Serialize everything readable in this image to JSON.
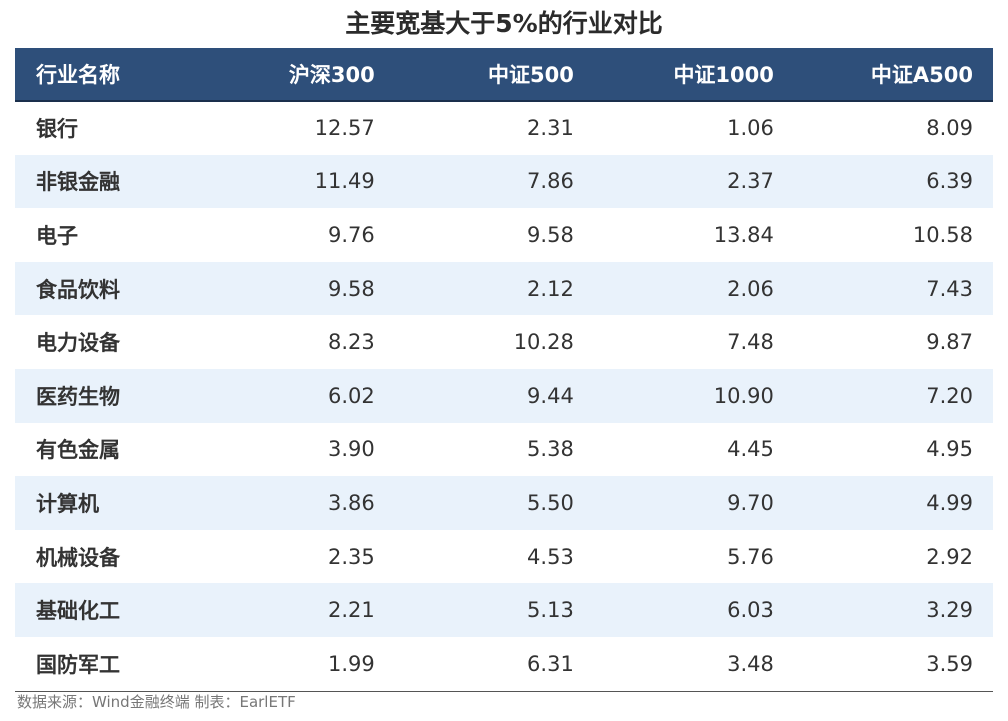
{
  "title": "主要宽基大于5%的行业对比",
  "table": {
    "headers": [
      "行业名称",
      "沪深300",
      "中证500",
      "中证1000",
      "中证A500"
    ],
    "rows": [
      [
        "银行",
        "12.57",
        "2.31",
        "1.06",
        "8.09"
      ],
      [
        "非银金融",
        "11.49",
        "7.86",
        "2.37",
        "6.39"
      ],
      [
        "电子",
        "9.76",
        "9.58",
        "13.84",
        "10.58"
      ],
      [
        "食品饮料",
        "9.58",
        "2.12",
        "2.06",
        "7.43"
      ],
      [
        "电力设备",
        "8.23",
        "10.28",
        "7.48",
        "9.87"
      ],
      [
        "医药生物",
        "6.02",
        "9.44",
        "10.90",
        "7.20"
      ],
      [
        "有色金属",
        "3.90",
        "5.38",
        "4.45",
        "4.95"
      ],
      [
        "计算机",
        "3.86",
        "5.50",
        "9.70",
        "4.99"
      ],
      [
        "机械设备",
        "2.35",
        "4.53",
        "5.76",
        "2.92"
      ],
      [
        "基础化工",
        "2.21",
        "5.13",
        "6.03",
        "3.29"
      ],
      [
        "国防军工",
        "1.99",
        "6.31",
        "3.48",
        "3.59"
      ]
    ]
  },
  "source": "数据来源：Wind金融终端 制表：EarlETF",
  "colors": {
    "header_bg": "#2e4f7a",
    "stripe_bg": "#e9f2fb",
    "header_text": "#ffffff"
  }
}
